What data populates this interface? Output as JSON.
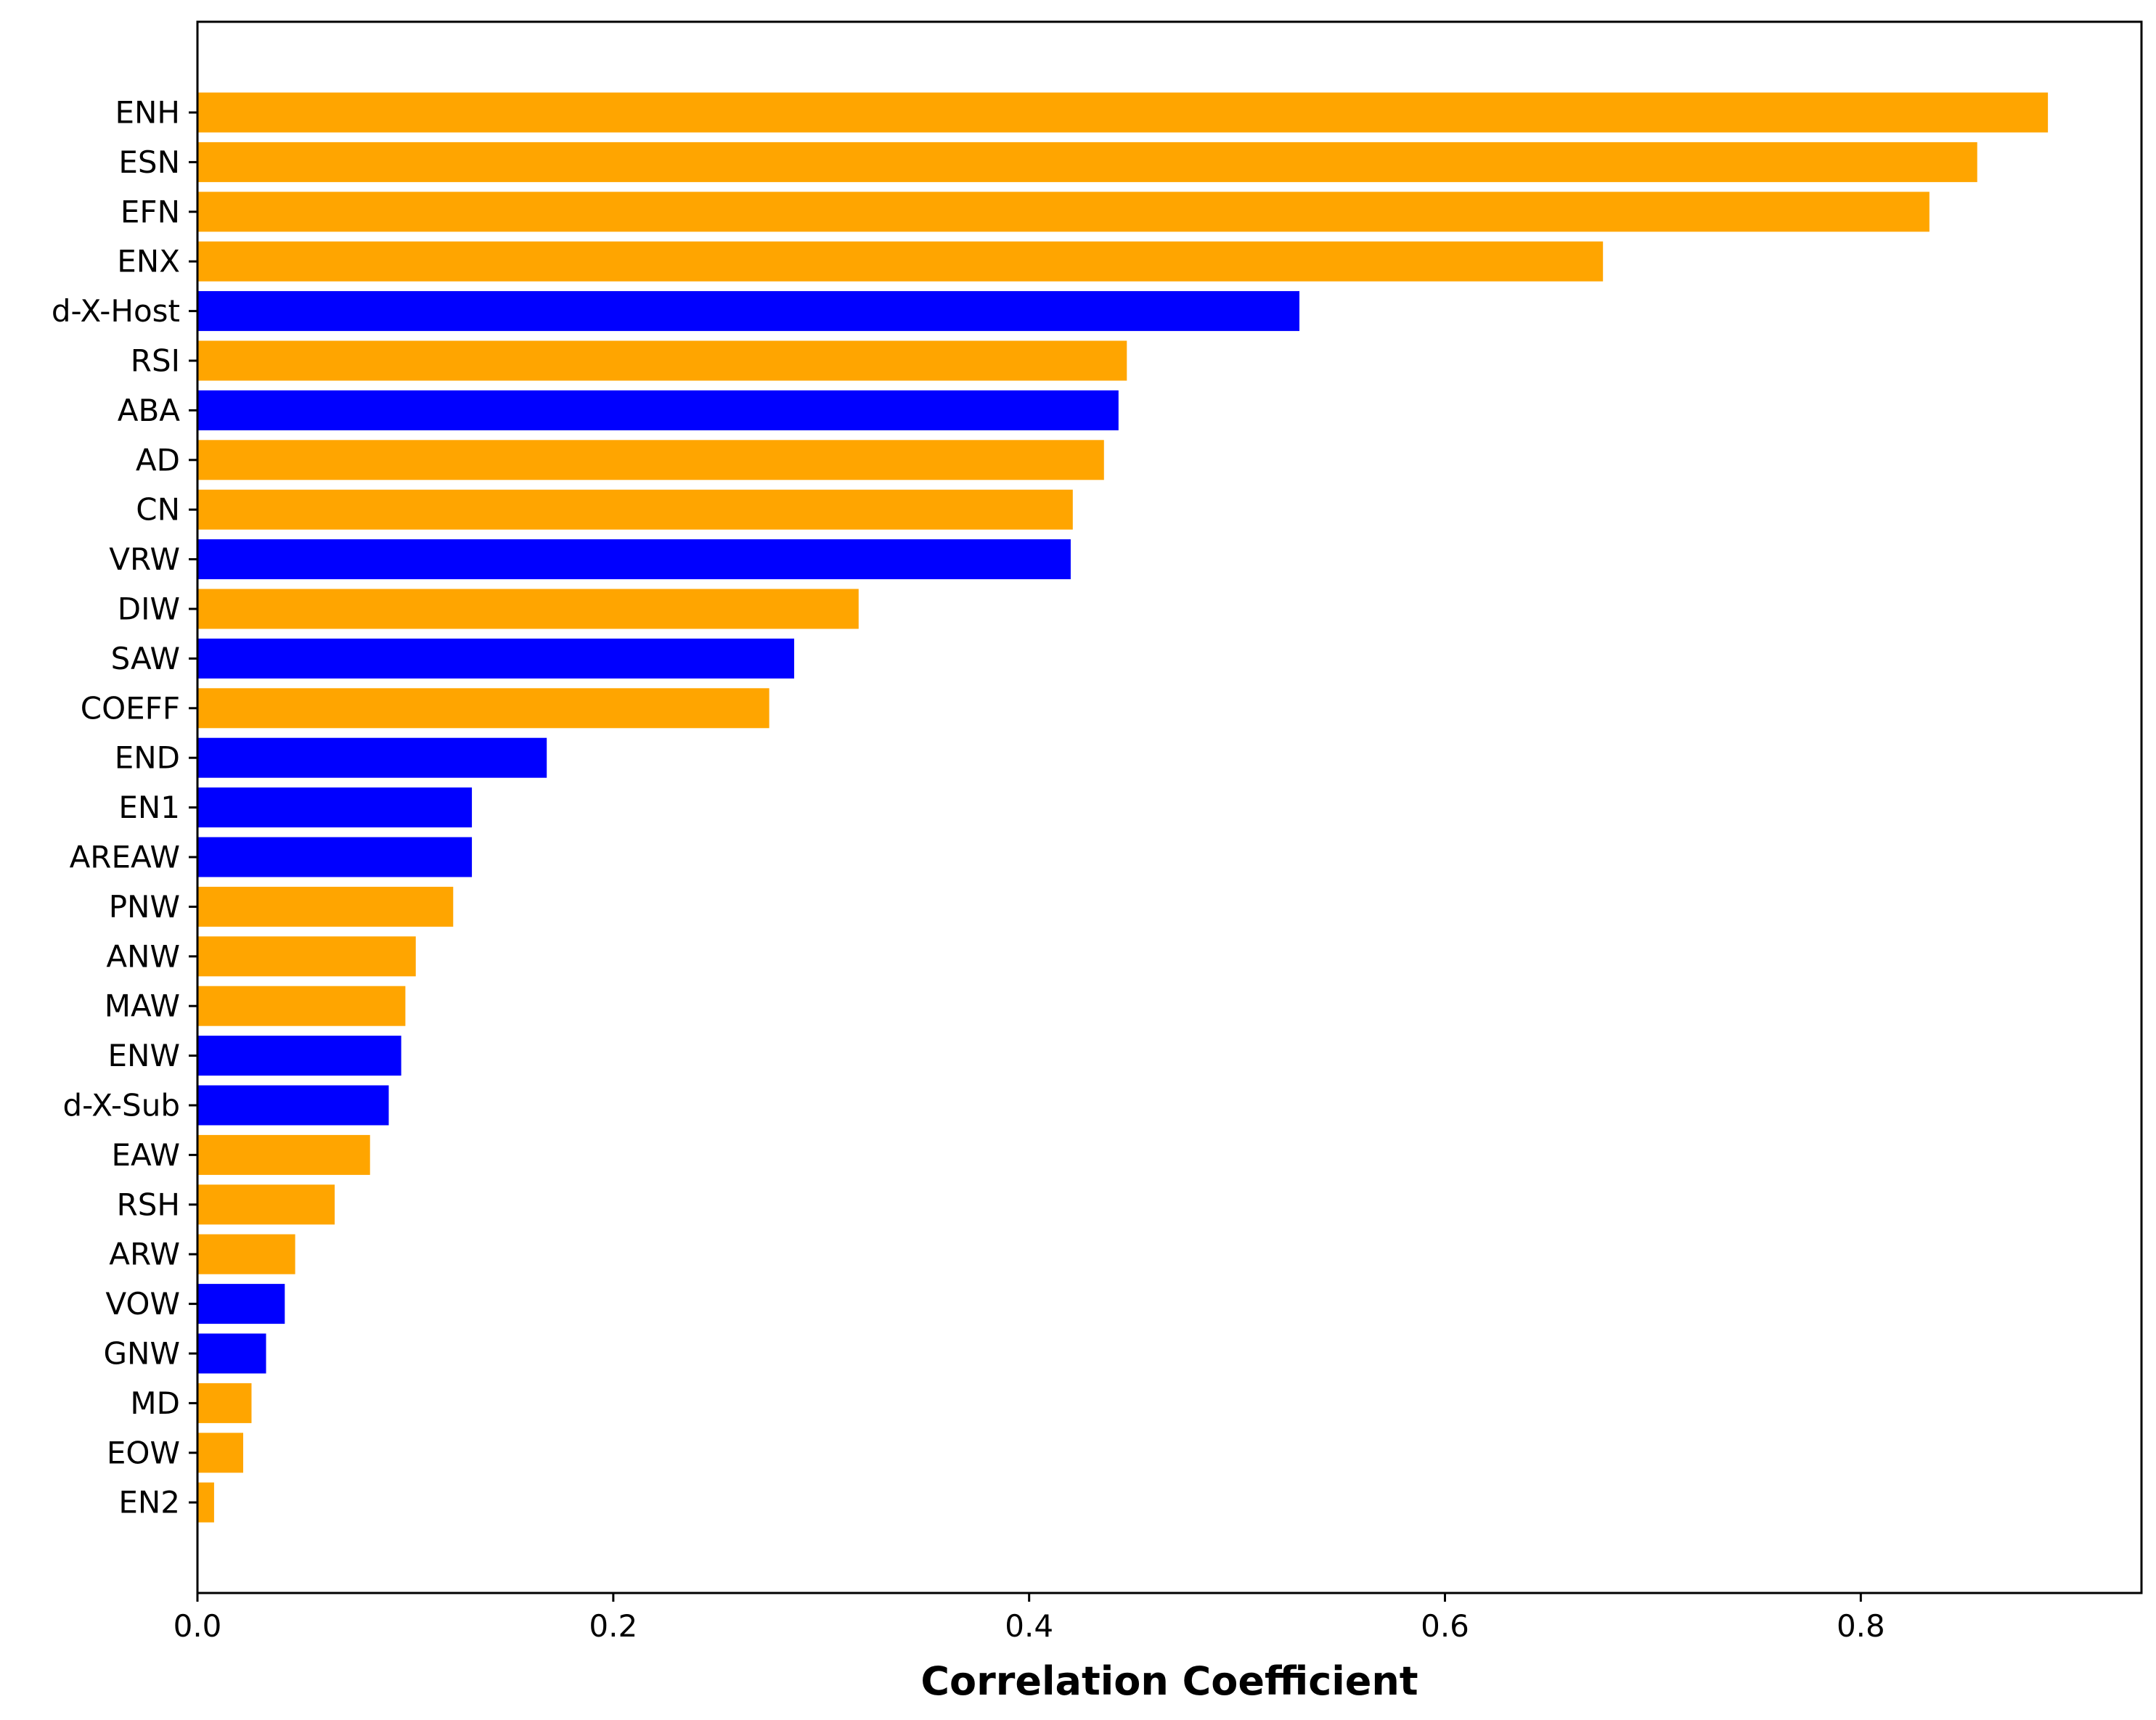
{
  "chart_data": {
    "type": "bar",
    "orientation": "horizontal",
    "title": "",
    "xlabel": "Correlation Coefficient",
    "ylabel": "",
    "xlim": [
      0.0,
      0.935
    ],
    "xticks": [
      0.0,
      0.2,
      0.4,
      0.6,
      0.8
    ],
    "xtick_labels": [
      "0.0",
      "0.2",
      "0.4",
      "0.6",
      "0.8"
    ],
    "grid": false,
    "legend": "none",
    "colors": {
      "orange": "#FFA500",
      "blue": "#0000FF"
    },
    "categories": [
      "ENH",
      "ESN",
      "EFN",
      "ENX",
      "d-X-Host",
      "RSI",
      "ABA",
      "AD",
      "CN",
      "VRW",
      "DIW",
      "SAW",
      "COEFF",
      "END",
      "EN1",
      "AREAW",
      "PNW",
      "ANW",
      "MAW",
      "ENW",
      "d-X-Sub",
      "EAW",
      "RSH",
      "ARW",
      "VOW",
      "GNW",
      "MD",
      "EOW",
      "EN2"
    ],
    "values": [
      0.89,
      0.856,
      0.833,
      0.676,
      0.53,
      0.447,
      0.443,
      0.436,
      0.421,
      0.42,
      0.318,
      0.287,
      0.275,
      0.168,
      0.132,
      0.132,
      0.123,
      0.105,
      0.1,
      0.098,
      0.092,
      0.083,
      0.066,
      0.047,
      0.042,
      0.033,
      0.026,
      0.022,
      0.008
    ],
    "bar_colors": [
      "orange",
      "orange",
      "orange",
      "orange",
      "blue",
      "orange",
      "blue",
      "orange",
      "orange",
      "blue",
      "orange",
      "blue",
      "orange",
      "blue",
      "blue",
      "blue",
      "orange",
      "orange",
      "orange",
      "blue",
      "blue",
      "orange",
      "orange",
      "orange",
      "blue",
      "blue",
      "orange",
      "orange",
      "orange"
    ]
  }
}
